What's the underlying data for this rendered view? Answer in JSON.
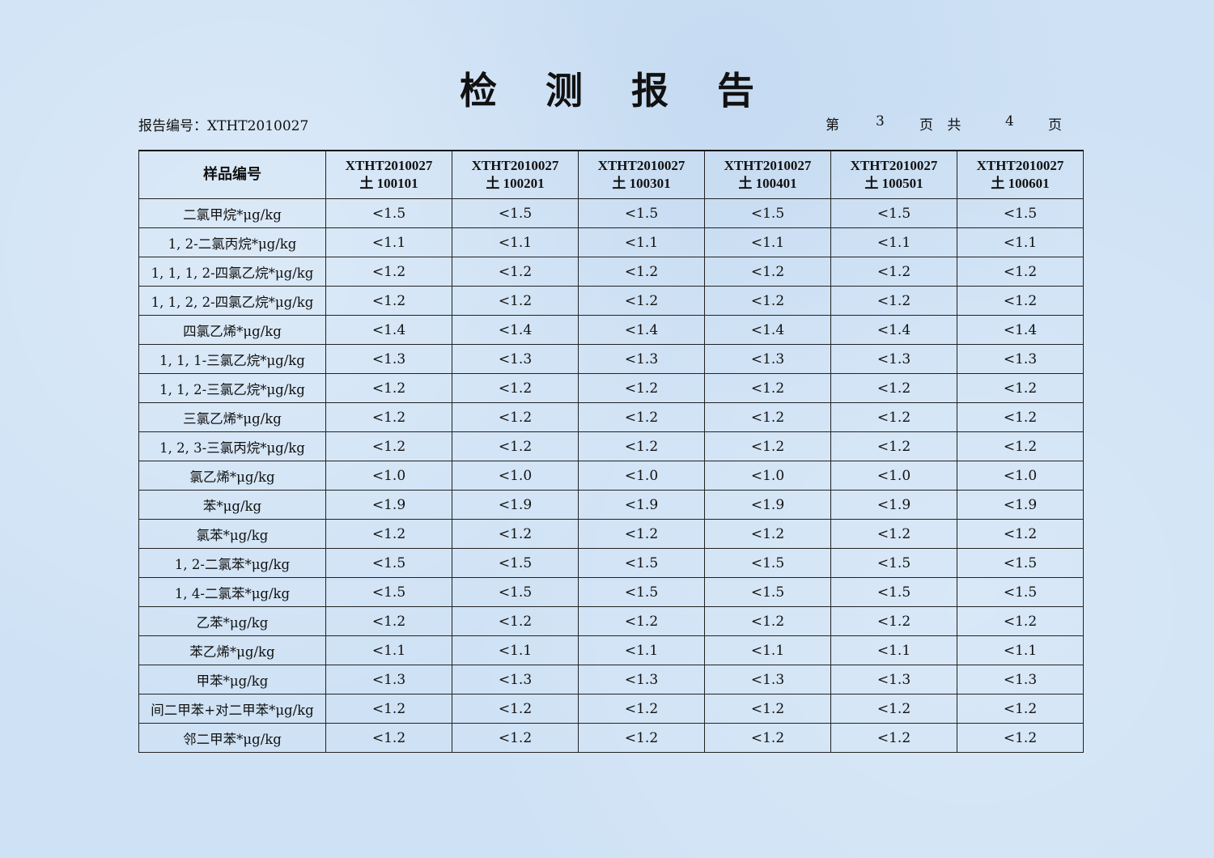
{
  "title": "检 测 报 告",
  "report_no": "报告编号：XTHT2010027",
  "page": {
    "prefix": "第",
    "current": "3",
    "mid": "页 共",
    "total": "4",
    "suffix": "页"
  },
  "table": {
    "header_first": "样品编号",
    "columns": [
      {
        "line1": "XTHT2010027",
        "line2": "土 100101"
      },
      {
        "line1": "XTHT2010027",
        "line2": "土 100201"
      },
      {
        "line1": "XTHT2010027",
        "line2": "土 100301"
      },
      {
        "line1": "XTHT2010027",
        "line2": "土 100401"
      },
      {
        "line1": "XTHT2010027",
        "line2": "土 100501"
      },
      {
        "line1": "XTHT2010027",
        "line2": "土 100601"
      }
    ],
    "rows": [
      {
        "name": "二氯甲烷*μg/kg",
        "values": [
          "<1.5",
          "<1.5",
          "<1.5",
          "<1.5",
          "<1.5",
          "<1.5"
        ]
      },
      {
        "name": "1, 2-二氯丙烷*μg/kg",
        "values": [
          "<1.1",
          "<1.1",
          "<1.1",
          "<1.1",
          "<1.1",
          "<1.1"
        ]
      },
      {
        "name": "1, 1, 1, 2-四氯乙烷*μg/kg",
        "values": [
          "<1.2",
          "<1.2",
          "<1.2",
          "<1.2",
          "<1.2",
          "<1.2"
        ]
      },
      {
        "name": "1, 1, 2, 2-四氯乙烷*μg/kg",
        "values": [
          "<1.2",
          "<1.2",
          "<1.2",
          "<1.2",
          "<1.2",
          "<1.2"
        ]
      },
      {
        "name": "四氯乙烯*μg/kg",
        "values": [
          "<1.4",
          "<1.4",
          "<1.4",
          "<1.4",
          "<1.4",
          "<1.4"
        ]
      },
      {
        "name": "1, 1, 1-三氯乙烷*μg/kg",
        "values": [
          "<1.3",
          "<1.3",
          "<1.3",
          "<1.3",
          "<1.3",
          "<1.3"
        ]
      },
      {
        "name": "1, 1, 2-三氯乙烷*μg/kg",
        "values": [
          "<1.2",
          "<1.2",
          "<1.2",
          "<1.2",
          "<1.2",
          "<1.2"
        ]
      },
      {
        "name": "三氯乙烯*μg/kg",
        "values": [
          "<1.2",
          "<1.2",
          "<1.2",
          "<1.2",
          "<1.2",
          "<1.2"
        ]
      },
      {
        "name": "1, 2, 3-三氯丙烷*μg/kg",
        "values": [
          "<1.2",
          "<1.2",
          "<1.2",
          "<1.2",
          "<1.2",
          "<1.2"
        ]
      },
      {
        "name": "氯乙烯*μg/kg",
        "values": [
          "<1.0",
          "<1.0",
          "<1.0",
          "<1.0",
          "<1.0",
          "<1.0"
        ]
      },
      {
        "name": "苯*μg/kg",
        "values": [
          "<1.9",
          "<1.9",
          "<1.9",
          "<1.9",
          "<1.9",
          "<1.9"
        ]
      },
      {
        "name": "氯苯*μg/kg",
        "values": [
          "<1.2",
          "<1.2",
          "<1.2",
          "<1.2",
          "<1.2",
          "<1.2"
        ]
      },
      {
        "name": "1, 2-二氯苯*μg/kg",
        "values": [
          "<1.5",
          "<1.5",
          "<1.5",
          "<1.5",
          "<1.5",
          "<1.5"
        ]
      },
      {
        "name": "1, 4-二氯苯*μg/kg",
        "values": [
          "<1.5",
          "<1.5",
          "<1.5",
          "<1.5",
          "<1.5",
          "<1.5"
        ]
      },
      {
        "name": "乙苯*μg/kg",
        "values": [
          "<1.2",
          "<1.2",
          "<1.2",
          "<1.2",
          "<1.2",
          "<1.2"
        ]
      },
      {
        "name": "苯乙烯*μg/kg",
        "values": [
          "<1.1",
          "<1.1",
          "<1.1",
          "<1.1",
          "<1.1",
          "<1.1"
        ]
      },
      {
        "name": "甲苯*μg/kg",
        "values": [
          "<1.3",
          "<1.3",
          "<1.3",
          "<1.3",
          "<1.3",
          "<1.3"
        ]
      },
      {
        "name": "间二甲苯+对二甲苯*μg/kg",
        "values": [
          "<1.2",
          "<1.2",
          "<1.2",
          "<1.2",
          "<1.2",
          "<1.2"
        ]
      },
      {
        "name": "邻二甲苯*μg/kg",
        "values": [
          "<1.2",
          "<1.2",
          "<1.2",
          "<1.2",
          "<1.2",
          "<1.2"
        ]
      }
    ]
  }
}
